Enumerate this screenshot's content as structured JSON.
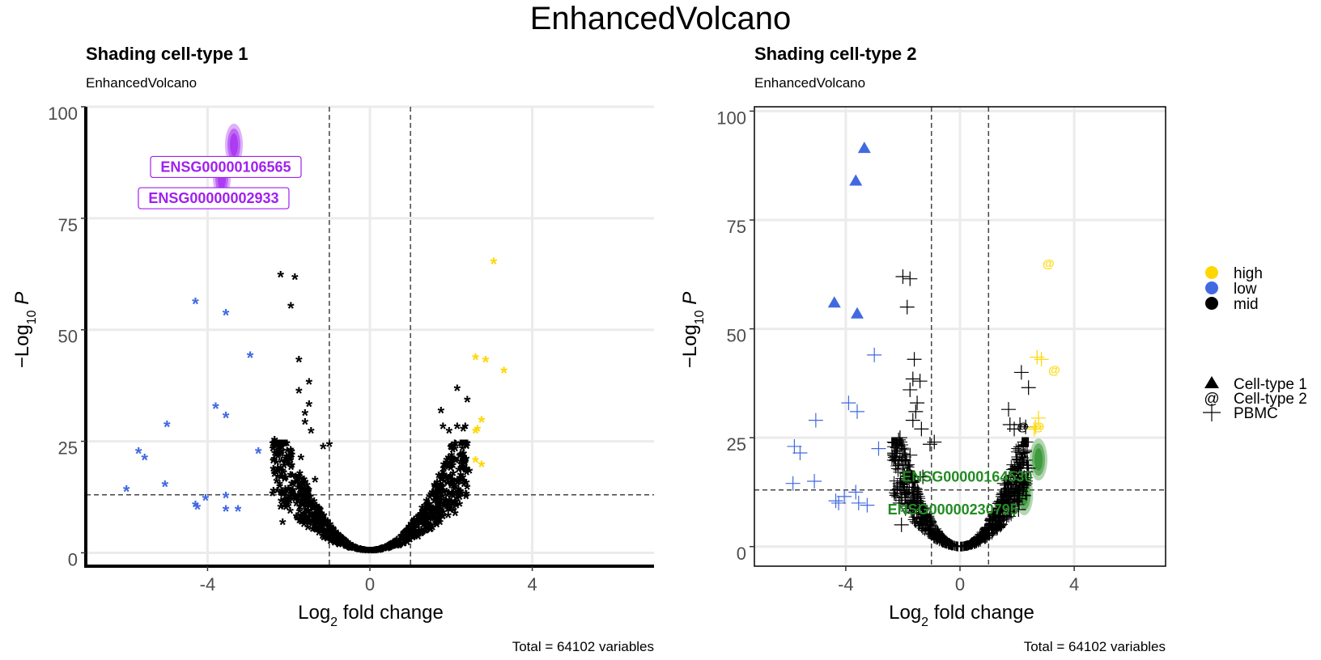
{
  "figure": {
    "title": "EnhancedVolcano",
    "colors": {
      "high": "#FFD700",
      "low": "#4169E1",
      "mid": "#000000",
      "label_purple": "#A020F0",
      "label_green": "#228B22"
    }
  },
  "chart_data": [
    {
      "type": "scatter",
      "title": "Shading cell-type 1",
      "subtitle": "EnhancedVolcano",
      "xlabel": "Log2 fold change",
      "ylabel": "−Log10 P",
      "xlim": [
        -7,
        7
      ],
      "ylim": [
        -3,
        100
      ],
      "x_ticks": [
        -4,
        0,
        4
      ],
      "y_ticks": [
        0,
        25,
        50,
        75,
        100
      ],
      "x_tick_labels": [
        "-4",
        "0",
        "4"
      ],
      "y_tick_labels": [
        "0",
        "25",
        "50",
        "75",
        "100"
      ],
      "cutoffs": {
        "fold_change": [
          -1,
          1
        ],
        "p_line": 13
      },
      "grid": true,
      "caption": "Total = 64102 variables",
      "point_shape": "*",
      "series": [
        {
          "color_key": "low",
          "points": [
            [
              -4.3,
              56
            ],
            [
              -3.55,
              53.5
            ],
            [
              -2.95,
              44
            ],
            [
              -3.8,
              32.5
            ],
            [
              -3.55,
              30.5
            ],
            [
              -5.0,
              28.5
            ],
            [
              -2.75,
              22.5
            ],
            [
              -5.7,
              22.5
            ],
            [
              -5.55,
              21
            ],
            [
              -6.0,
              14
            ],
            [
              -5.05,
              15
            ],
            [
              -3.55,
              12.5
            ],
            [
              -4.05,
              12
            ],
            [
              -4.3,
              10.5
            ],
            [
              -4.25,
              10
            ],
            [
              -3.55,
              9.5
            ],
            [
              -3.25,
              9.5
            ]
          ]
        },
        {
          "color_key": "mid",
          "points": [
            [
              -2.2,
              62
            ],
            [
              -1.85,
              61.5
            ],
            [
              -1.95,
              55
            ],
            [
              -1.75,
              43
            ],
            [
              -1.5,
              38
            ],
            [
              -1.75,
              36
            ],
            [
              -1.5,
              33
            ],
            [
              -1.6,
              31
            ],
            [
              -1.6,
              29
            ],
            [
              -1.45,
              27
            ],
            [
              -2.35,
              25
            ],
            [
              -2.35,
              24.5
            ],
            [
              -1.15,
              23.5
            ],
            [
              -1.0,
              24
            ],
            [
              -1.7,
              21
            ],
            [
              -2.15,
              18
            ],
            [
              -1.35,
              16
            ],
            [
              -2.4,
              13
            ],
            [
              -2.2,
              10
            ],
            [
              -2.15,
              6.5
            ],
            [
              2.15,
              36.5
            ],
            [
              2.4,
              34
            ],
            [
              1.75,
              31.5
            ],
            [
              1.8,
              28
            ],
            [
              2.15,
              28
            ],
            [
              2.35,
              28
            ],
            [
              1.95,
              27
            ],
            [
              2.3,
              27.5
            ],
            [
              2.45,
              18
            ],
            [
              2.15,
              16
            ],
            [
              2.25,
              13
            ],
            [
              1.6,
              14.5
            ],
            [
              2.1,
              8.5
            ]
          ]
        },
        {
          "color_key": "high",
          "points": [
            [
              3.05,
              65
            ],
            [
              2.6,
              43.5
            ],
            [
              2.85,
              43
            ],
            [
              3.3,
              40.5
            ],
            [
              2.75,
              29.5
            ],
            [
              2.65,
              27.5
            ],
            [
              2.6,
              27
            ],
            [
              2.6,
              20.5
            ],
            [
              2.75,
              19.5
            ]
          ]
        }
      ],
      "shaded_ids": [
        "ENSG00000106565",
        "ENSG00000002933"
      ],
      "shaded_points": [
        [
          -3.35,
          91.5
        ],
        [
          -3.65,
          84
        ]
      ],
      "labels": [
        {
          "text": "ENSG00000106565",
          "x": -3.55,
          "y": 86.5
        },
        {
          "text": "ENSG00000002933",
          "x": -3.85,
          "y": 79.5
        }
      ]
    },
    {
      "type": "scatter",
      "title": "Shading cell-type 2",
      "subtitle": "EnhancedVolcano",
      "xlabel": "Log2 fold change",
      "ylabel": "−Log10 P",
      "xlim": [
        -7.2,
        7.2
      ],
      "ylim": [
        -4.5,
        101
      ],
      "x_ticks": [
        -4,
        0,
        4
      ],
      "y_ticks": [
        0,
        25,
        50,
        75,
        100
      ],
      "x_tick_labels": [
        "-4",
        "0",
        "4"
      ],
      "y_tick_labels": [
        "0",
        "25",
        "50",
        "75",
        "100"
      ],
      "cutoffs": {
        "fold_change": [
          -1,
          1
        ],
        "p_line": 13
      },
      "grid": true,
      "caption": "Total = 64102 variables",
      "series": [
        {
          "color_key": "low",
          "shape": "triangle",
          "points": [
            [
              -3.35,
              91.5
            ],
            [
              -3.65,
              84
            ],
            [
              -4.4,
              56
            ],
            [
              -3.6,
              53.5
            ]
          ]
        },
        {
          "color_key": "low",
          "shape": "plus",
          "points": [
            [
              -3.0,
              44
            ],
            [
              -3.9,
              33
            ],
            [
              -3.6,
              31
            ],
            [
              -5.05,
              29
            ],
            [
              -2.85,
              22.5
            ],
            [
              -5.8,
              23
            ],
            [
              -5.6,
              21.5
            ],
            [
              -5.85,
              14.5
            ],
            [
              -5.1,
              15
            ],
            [
              -3.65,
              12.5
            ],
            [
              -4.05,
              11.5
            ],
            [
              -4.35,
              10.5
            ],
            [
              -4.25,
              10
            ],
            [
              -3.55,
              10
            ],
            [
              -3.25,
              9.5
            ]
          ]
        },
        {
          "color_key": "mid",
          "shape": "plus",
          "points": [
            [
              -2.0,
              62
            ],
            [
              -1.75,
              61.5
            ],
            [
              -1.85,
              55
            ],
            [
              -1.6,
              43
            ],
            [
              -1.65,
              38.5
            ],
            [
              -1.4,
              38
            ],
            [
              -1.75,
              36
            ],
            [
              -1.5,
              33
            ],
            [
              -1.55,
              31
            ],
            [
              -1.65,
              29
            ],
            [
              -1.35,
              27
            ],
            [
              -2.1,
              25
            ],
            [
              -2.15,
              24.5
            ],
            [
              -1.05,
              23.5
            ],
            [
              -0.9,
              24
            ],
            [
              -1.75,
              21
            ],
            [
              -2.0,
              18
            ],
            [
              -1.3,
              16
            ],
            [
              -2.2,
              13
            ],
            [
              -2.1,
              10
            ],
            [
              -2.05,
              5
            ],
            [
              2.15,
              40
            ],
            [
              2.4,
              36.5
            ],
            [
              1.7,
              31.5
            ],
            [
              1.75,
              28
            ],
            [
              2.1,
              28
            ],
            [
              2.3,
              27.5
            ],
            [
              1.9,
              27
            ],
            [
              2.4,
              18
            ],
            [
              2.0,
              16
            ],
            [
              2.1,
              13
            ],
            [
              1.55,
              14.5
            ],
            [
              2.05,
              8.5
            ]
          ]
        },
        {
          "color_key": "mid",
          "shape": "at",
          "points": [
            [
              2.2,
              27.5
            ]
          ]
        },
        {
          "color_key": "high",
          "shape": "plus",
          "points": [
            [
              2.7,
              43.5
            ],
            [
              2.85,
              43
            ],
            [
              2.75,
              29.5
            ],
            [
              2.65,
              27.5
            ],
            [
              2.6,
              27
            ]
          ]
        },
        {
          "color_key": "high",
          "shape": "at",
          "points": [
            [
              3.1,
              65
            ],
            [
              3.3,
              40.5
            ],
            [
              2.75,
              27.5
            ]
          ]
        }
      ],
      "shaded_ids": [
        "ENSG00000164530",
        "ENSG00000230795"
      ],
      "shaded_points": [
        [
          2.75,
          20
        ],
        [
          2.25,
          12
        ]
      ],
      "labels": [
        {
          "text": "ENSG00000164530",
          "x": 0.25,
          "y": 16
        },
        {
          "text": "ENSG00000230795",
          "x": -0.25,
          "y": 8.5
        }
      ]
    }
  ],
  "legend": {
    "placement": "right",
    "color_title": "",
    "color_items": [
      {
        "label": "high",
        "color_key": "high"
      },
      {
        "label": "low",
        "color_key": "low"
      },
      {
        "label": "mid",
        "color_key": "mid"
      }
    ],
    "shape_title": "",
    "shape_items": [
      {
        "label": "Cell-type 1",
        "shape": "triangle"
      },
      {
        "label": "Cell-type 2",
        "shape": "at"
      },
      {
        "label": "PBMC",
        "shape": "plus"
      }
    ]
  }
}
